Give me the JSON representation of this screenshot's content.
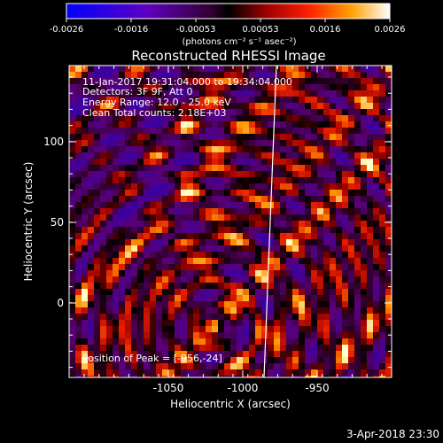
{
  "colorbar": {
    "tick_labels": [
      "-0.0026",
      "-0.0016",
      "-0.00053",
      "0.00053",
      "0.0016",
      "0.0026"
    ],
    "unit_label": "(photons cm⁻² s⁻¹ asec⁻²)"
  },
  "title": "Reconstructed RHESSI Image",
  "annotations": {
    "time_range": "11-Jan-2017 19:31:04.000 to 19:34:04.000",
    "detectors": "Detectors: 3F 9F, Att 0",
    "energy_range": "Energy Range: 12.0 - 25.0 keV",
    "clean": "Clean    Total counts: 2.18E+03",
    "peak": "Position of Peak = [-956,-24]"
  },
  "axes": {
    "xlabel": "Heliocentric X (arcsec)",
    "ylabel": "Heliocentric Y (arcsec)",
    "xticks": [
      "-1050",
      "-1000",
      "-950"
    ],
    "yticks": [
      "100",
      "50",
      "0"
    ]
  },
  "footer": {
    "date": "3-Apr-2018 23:30"
  }
}
